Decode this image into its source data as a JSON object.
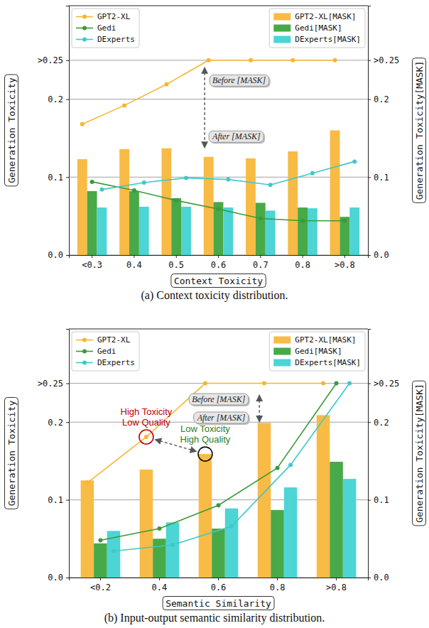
{
  "chart_data": [
    {
      "type": "bar",
      "x_label": "Context Toxicity",
      "y_label": "Generation Toxicity",
      "y2_label": "Generation Toxicity[MASK]",
      "caption": "(a) Context toxicity distribution.",
      "categories": [
        "<0.3",
        "0.4",
        "0.5",
        "0.6",
        "0.7",
        "0.8",
        ">0.8"
      ],
      "series": [
        {
          "name": "GPT2-XL",
          "type": "line",
          "marker": "circle",
          "color": "#f5b731",
          "values": [
            0.168,
            0.192,
            0.219,
            0.25,
            0.25,
            0.25,
            0.25
          ]
        },
        {
          "name": "Gedi",
          "type": "line",
          "marker": "circle",
          "color": "#3a9b3a",
          "values": [
            0.094,
            0.083,
            0.07,
            0.059,
            0.047,
            0.044,
            0.044
          ]
        },
        {
          "name": "DExperts",
          "type": "line",
          "marker": "circle",
          "color": "#3ec9c9",
          "values": [
            0.084,
            0.093,
            0.099,
            0.097,
            0.09,
            0.105,
            0.12
          ]
        },
        {
          "name": "GPT2-XL[MASK]",
          "type": "bar",
          "axis": "y2",
          "color": "#f8bb46",
          "values": [
            0.123,
            0.136,
            0.137,
            0.126,
            0.124,
            0.133,
            0.16
          ]
        },
        {
          "name": "Gedi[MASK]",
          "type": "bar",
          "axis": "y2",
          "color": "#48a948",
          "values": [
            0.082,
            0.082,
            0.073,
            0.068,
            0.067,
            0.061,
            0.049
          ]
        },
        {
          "name": "DExperts[MASK]",
          "type": "bar",
          "axis": "y2",
          "color": "#4dd4d4",
          "values": [
            0.061,
            0.062,
            0.062,
            0.061,
            0.057,
            0.06,
            0.061
          ]
        }
      ],
      "ylim": [
        0,
        0.32
      ],
      "yticks": [
        {
          "value": 0,
          "label": "0.0"
        },
        0.1,
        0.2,
        {
          "value": 0.25,
          "label": ">0.25"
        }
      ],
      "y2lim": [
        0,
        0.32
      ],
      "y2ticks": [
        {
          "value": 0,
          "label": "0.0"
        },
        0.1,
        0.2,
        {
          "value": 0.25,
          "label": ">0.25"
        }
      ],
      "grid": true,
      "legend": "top",
      "annotations": [
        {
          "text": [
            "Before [MASK]"
          ]
        },
        {
          "text": [
            "After [MASK]"
          ]
        }
      ]
    },
    {
      "type": "bar",
      "x_label": "Semantic Similarity",
      "y_label": "Generation Toxicity",
      "y2_label": "Generation Toxicity[MASK]",
      "caption": "(b) Input-output semantic similarity distribution.",
      "categories": [
        "<0.2",
        "0.4",
        "0.6",
        "0.8",
        ">0.8"
      ],
      "series": [
        {
          "name": "GPT2-XL",
          "type": "line",
          "marker": "circle",
          "color": "#f5b731",
          "values": [
            0.122,
            0.181,
            0.25,
            0.25,
            0.25
          ]
        },
        {
          "name": "Gedi",
          "type": "line",
          "marker": "circle",
          "color": "#3a9b3a",
          "values": [
            0.048,
            0.063,
            0.093,
            0.141,
            0.25
          ]
        },
        {
          "name": "DExperts",
          "type": "line",
          "marker": "circle",
          "color": "#3ec9c9",
          "values": [
            0.034,
            0.042,
            0.066,
            0.145,
            0.25
          ]
        },
        {
          "name": "GPT2-XL[MASK]",
          "type": "bar",
          "axis": "y2",
          "color": "#f8bb46",
          "values": [
            0.125,
            0.139,
            0.159,
            0.199,
            0.209
          ]
        },
        {
          "name": "Gedi[MASK]",
          "type": "bar",
          "axis": "y2",
          "color": "#48a948",
          "values": [
            0.044,
            0.05,
            0.063,
            0.087,
            0.149
          ]
        },
        {
          "name": "DExperts[MASK]",
          "type": "bar",
          "axis": "y2",
          "color": "#4dd4d4",
          "values": [
            0.06,
            0.071,
            0.089,
            0.116,
            0.127
          ]
        }
      ],
      "ylim": [
        0,
        0.32
      ],
      "yticks": [
        {
          "value": 0,
          "label": "0.0"
        },
        0.1,
        0.2,
        {
          "value": 0.25,
          "label": ">0.25"
        }
      ],
      "y2lim": [
        0,
        0.32
      ],
      "y2ticks": [
        {
          "value": 0,
          "label": "0.0"
        },
        0.1,
        0.2,
        {
          "value": 0.25,
          "label": ">0.25"
        }
      ],
      "grid": true,
      "legend": "top",
      "annotations": [
        {
          "text": [
            "High Toxicity",
            "Low Quality"
          ],
          "color": "#c00000"
        },
        {
          "text": [
            "Low Toxicity",
            "High Quality"
          ],
          "color": "#2e7d1e"
        },
        {
          "text": [
            "Before [MASK]"
          ]
        },
        {
          "text": [
            "After [MASK]"
          ]
        }
      ]
    }
  ]
}
